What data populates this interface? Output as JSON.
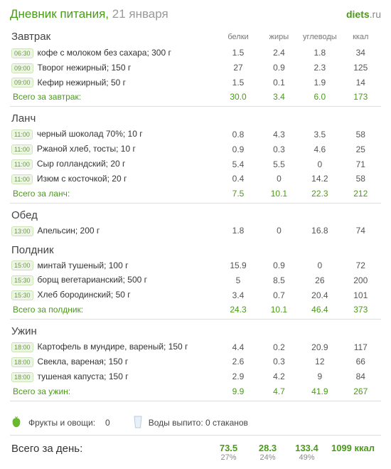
{
  "header": {
    "title_prefix": "Дневник питания",
    "date": "21 января",
    "brand_left": "diets",
    "brand_right": ".ru"
  },
  "columns": {
    "protein": "белки",
    "fat": "жиры",
    "carbs": "углеводы",
    "kcal": "ккал"
  },
  "meals": [
    {
      "name": "Завтрак",
      "items": [
        {
          "time": "06:30",
          "food": "кофе с молоком без сахара; 300 г",
          "p": "1.5",
          "f": "2.4",
          "c": "1.8",
          "k": "34"
        },
        {
          "time": "09:00",
          "food": "Творог нежирный; 150 г",
          "p": "27",
          "f": "0.9",
          "c": "2.3",
          "k": "125"
        },
        {
          "time": "09:00",
          "food": "Кефир нежирный; 50 г",
          "p": "1.5",
          "f": "0.1",
          "c": "1.9",
          "k": "14"
        }
      ],
      "subtotal": {
        "label": "Всего за завтрак:",
        "p": "30.0",
        "f": "3.4",
        "c": "6.0",
        "k": "173"
      }
    },
    {
      "name": "Ланч",
      "items": [
        {
          "time": "11:00",
          "food": "черный шоколад 70%; 10 г",
          "p": "0.8",
          "f": "4.3",
          "c": "3.5",
          "k": "58"
        },
        {
          "time": "11:00",
          "food": "Ржаной хлеб, тосты; 10 г",
          "p": "0.9",
          "f": "0.3",
          "c": "4.6",
          "k": "25"
        },
        {
          "time": "11:00",
          "food": "Сыр голландский; 20 г",
          "p": "5.4",
          "f": "5.5",
          "c": "0",
          "k": "71"
        },
        {
          "time": "11:00",
          "food": "Изюм с косточкой; 20 г",
          "p": "0.4",
          "f": "0",
          "c": "14.2",
          "k": "58"
        }
      ],
      "subtotal": {
        "label": "Всего за ланч:",
        "p": "7.5",
        "f": "10.1",
        "c": "22.3",
        "k": "212"
      }
    },
    {
      "name": "Обед",
      "items": [
        {
          "time": "13:00",
          "food": "Апельсин; 200 г",
          "p": "1.8",
          "f": "0",
          "c": "16.8",
          "k": "74"
        }
      ],
      "subtotal": null
    },
    {
      "name": "Полдник",
      "items": [
        {
          "time": "15:00",
          "food": "минтай тушеный; 100 г",
          "p": "15.9",
          "f": "0.9",
          "c": "0",
          "k": "72"
        },
        {
          "time": "15:30",
          "food": "борщ вегетарианский; 500 г",
          "p": "5",
          "f": "8.5",
          "c": "26",
          "k": "200"
        },
        {
          "time": "15:30",
          "food": "Хлеб бородинский; 50 г",
          "p": "3.4",
          "f": "0.7",
          "c": "20.4",
          "k": "101"
        }
      ],
      "subtotal": {
        "label": "Всего за полдник:",
        "p": "24.3",
        "f": "10.1",
        "c": "46.4",
        "k": "373"
      }
    },
    {
      "name": "Ужин",
      "items": [
        {
          "time": "18:00",
          "food": "Картофель в мундире, вареный; 150 г",
          "p": "4.4",
          "f": "0.2",
          "c": "20.9",
          "k": "117"
        },
        {
          "time": "18:00",
          "food": "Свекла, вареная; 150 г",
          "p": "2.6",
          "f": "0.3",
          "c": "12",
          "k": "66"
        },
        {
          "time": "18:00",
          "food": "тушеная капуста; 150 г",
          "p": "2.9",
          "f": "4.2",
          "c": "9",
          "k": "84"
        }
      ],
      "subtotal": {
        "label": "Всего за ужин:",
        "p": "9.9",
        "f": "4.7",
        "c": "41.9",
        "k": "267"
      }
    }
  ],
  "footer": {
    "fruits_label": "Фрукты и овощи:",
    "fruits_value": "0",
    "water_label": "Воды выпито: 0 стаканов"
  },
  "day_total": {
    "label": "Всего за день:",
    "p": "73.5",
    "f": "28.3",
    "c": "133.4",
    "k": "1099 ккал",
    "p_pct": "27%",
    "f_pct": "24%",
    "c_pct": "49%"
  },
  "style": {
    "accent": "#4a9a1a",
    "muted": "#888",
    "border": "#ddd",
    "badge_bg": "#eef5e6",
    "badge_border": "#cde3b8"
  }
}
